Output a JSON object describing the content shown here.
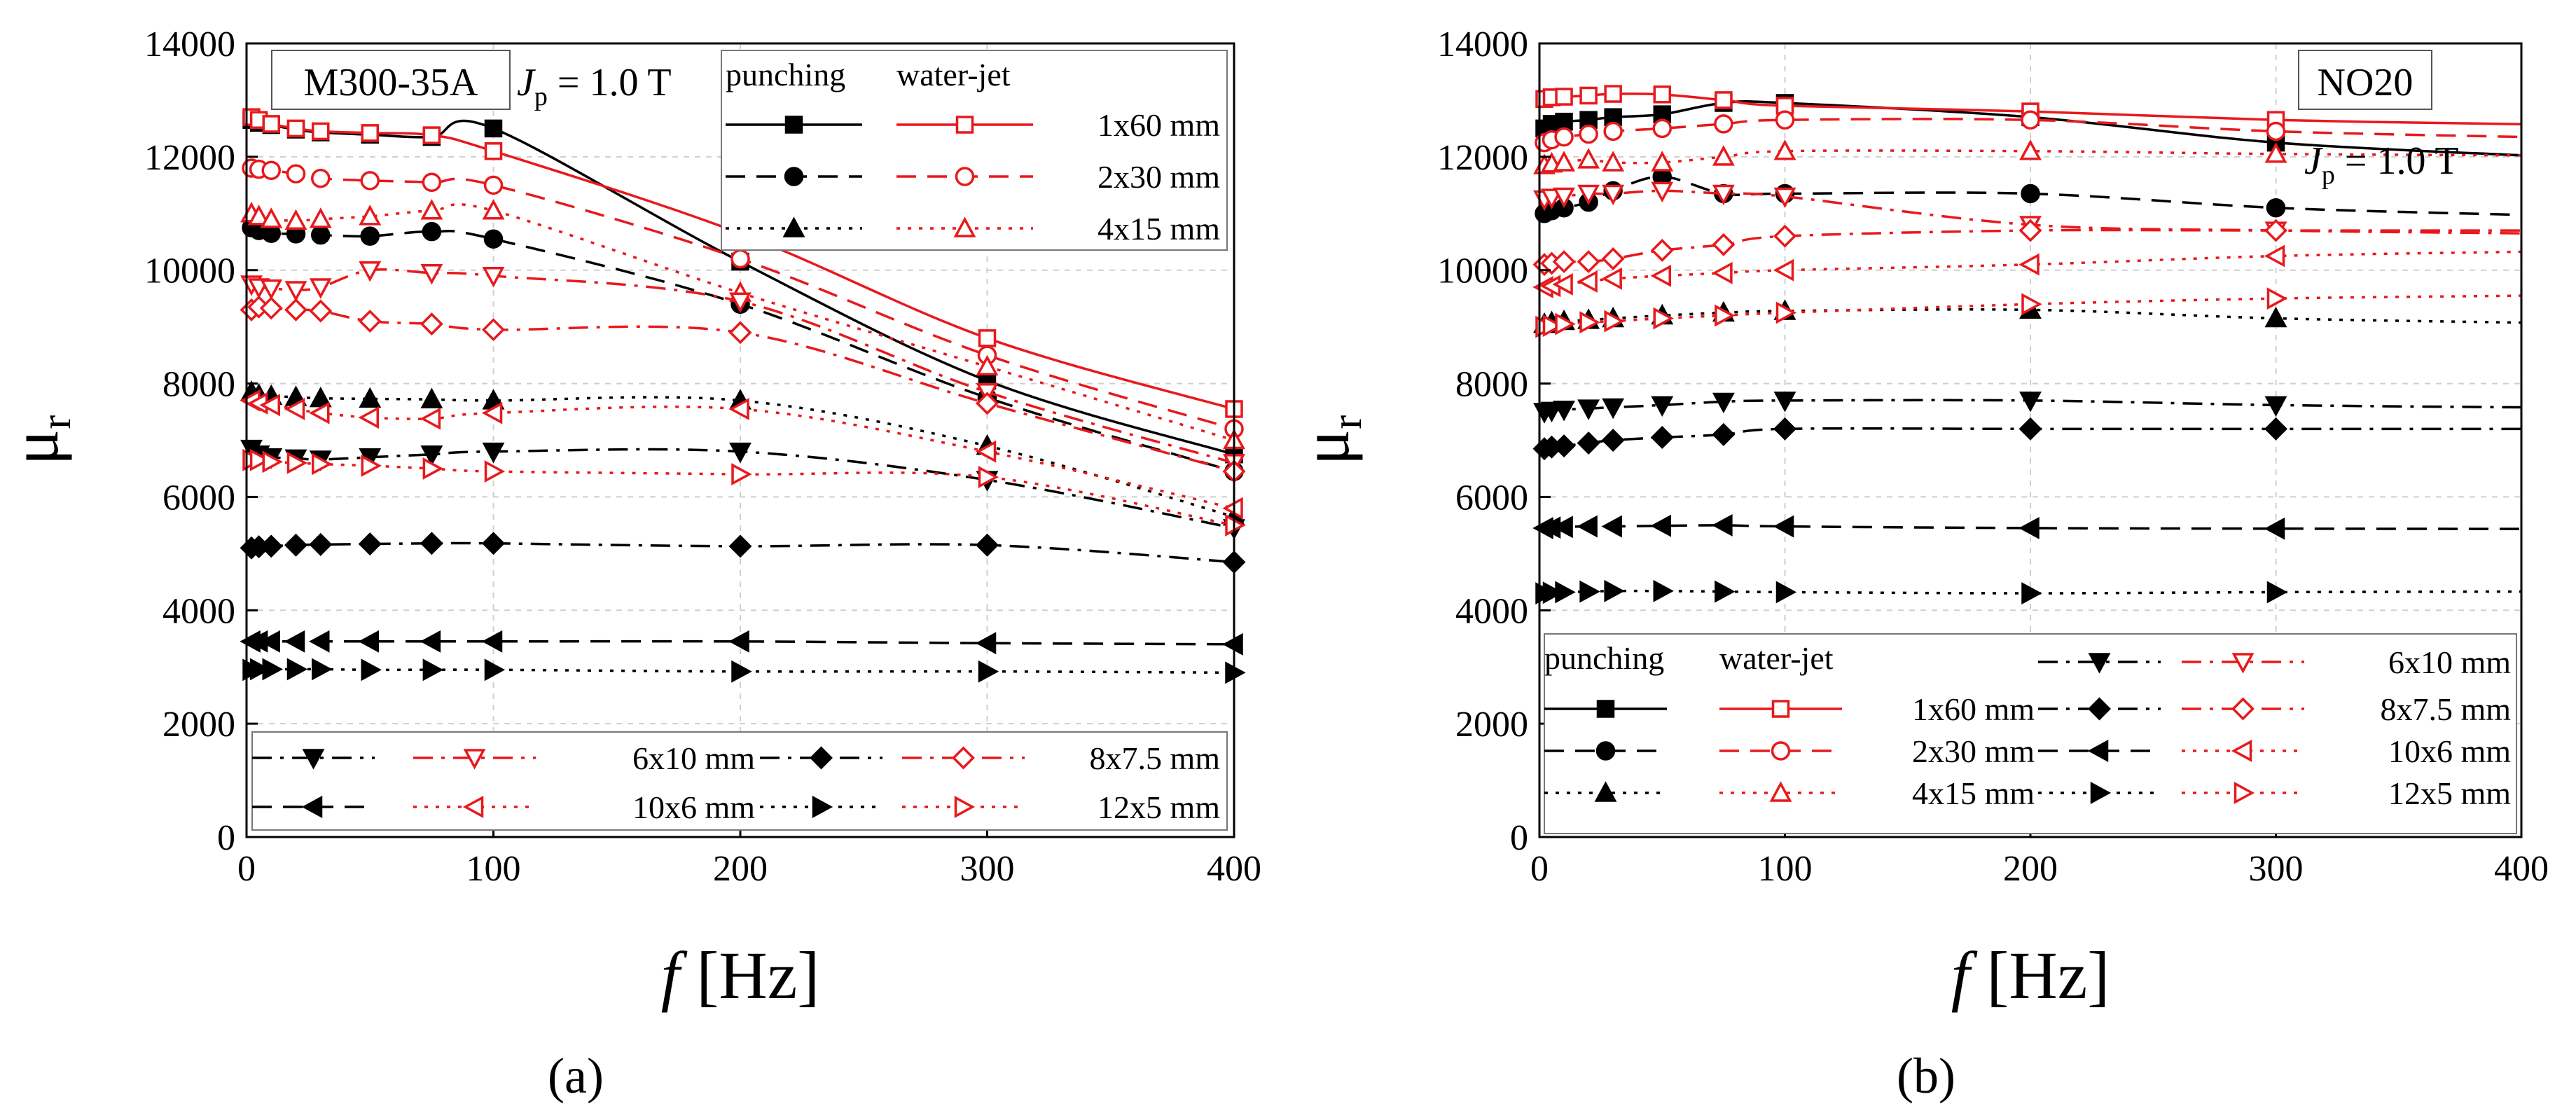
{
  "figure": {
    "label_a": "(a)",
    "label_b": "(b)"
  },
  "axis_text": {
    "f_sym": "f",
    "f_unit": "[Hz]",
    "mu_sym": "μ",
    "mu_sub": "r"
  },
  "annotation": {
    "J": "J",
    "J_sub": "p",
    "J_val": " = 1.0 T"
  },
  "legend_text": {
    "punching": "punching",
    "waterjet": "water-jet"
  },
  "colors": {
    "punching": "#000000",
    "waterjet": "#e8191c",
    "grid": "#cfcfcf"
  },
  "chart_data": [
    {
      "type": "line",
      "panel": "a",
      "material": "M300-35A",
      "xlabel": "f [Hz]",
      "ylabel": "μr",
      "xlim": [
        0,
        400
      ],
      "ylim": [
        0,
        14000
      ],
      "xticks": [
        "0",
        "100",
        "200",
        "300",
        "400"
      ],
      "yticks": [
        "0",
        "2000",
        "4000",
        "6000",
        "8000",
        "10000",
        "12000",
        "14000"
      ],
      "x": [
        2,
        5,
        10,
        20,
        30,
        50,
        75,
        100,
        200,
        300,
        400
      ],
      "series": [
        {
          "name": "punching 1x60 mm",
          "method": "punching",
          "strip": "1x60 mm",
          "marker": "square-filled",
          "dash": "solid",
          "values": [
            12650,
            12600,
            12560,
            12480,
            12430,
            12390,
            12350,
            12500,
            10150,
            8050,
            6750
          ]
        },
        {
          "name": "water-jet 1x60 mm",
          "method": "water-jet",
          "strip": "1x60 mm",
          "marker": "square-open",
          "dash": "solid",
          "values": [
            12700,
            12650,
            12580,
            12500,
            12450,
            12420,
            12380,
            12100,
            10650,
            8800,
            7550
          ]
        },
        {
          "name": "punching 2x30 mm",
          "method": "punching",
          "strip": "2x30 mm",
          "marker": "circle-filled",
          "dash": "dash",
          "values": [
            10750,
            10700,
            10650,
            10640,
            10620,
            10600,
            10680,
            10550,
            9400,
            7750,
            6450
          ]
        },
        {
          "name": "water-jet 2x30 mm",
          "method": "water-jet",
          "strip": "2x30 mm",
          "marker": "circle-open",
          "dash": "dash",
          "values": [
            11800,
            11780,
            11760,
            11700,
            11620,
            11580,
            11550,
            11500,
            10200,
            8500,
            7200
          ]
        },
        {
          "name": "punching 4x15 mm",
          "method": "punching",
          "strip": "4x15 mm",
          "marker": "triangle-up-filled",
          "dash": "dot",
          "values": [
            7850,
            7800,
            7780,
            7760,
            7740,
            7730,
            7720,
            7700,
            7700,
            6900,
            5650
          ]
        },
        {
          "name": "water-jet 4x15 mm",
          "method": "water-jet",
          "strip": "4x15 mm",
          "marker": "triangle-up-open",
          "dash": "dot",
          "values": [
            11000,
            10950,
            10900,
            10870,
            10900,
            10950,
            11050,
            11050,
            9600,
            8300,
            7000
          ]
        },
        {
          "name": "punching 6x10 mm",
          "method": "punching",
          "strip": "6x10 mm",
          "marker": "triangle-down-filled",
          "dash": "dashdot",
          "values": [
            6850,
            6750,
            6700,
            6680,
            6660,
            6700,
            6750,
            6800,
            6800,
            6300,
            5450
          ]
        },
        {
          "name": "water-jet 6x10 mm",
          "method": "water-jet",
          "strip": "6x10 mm",
          "marker": "triangle-down-open",
          "dash": "dashdot",
          "values": [
            9750,
            9700,
            9680,
            9650,
            9700,
            10000,
            9950,
            9900,
            9450,
            7850,
            6600
          ]
        },
        {
          "name": "punching 8x7.5 mm",
          "method": "punching",
          "strip": "8x7.5 mm",
          "marker": "diamond-filled",
          "dash": "dashdot",
          "values": [
            5100,
            5120,
            5130,
            5150,
            5160,
            5170,
            5180,
            5180,
            5130,
            5150,
            4850
          ]
        },
        {
          "name": "water-jet 8x7.5 mm",
          "method": "water-jet",
          "strip": "8x7.5 mm",
          "marker": "diamond-open",
          "dash": "dashdot",
          "values": [
            9300,
            9350,
            9330,
            9300,
            9280,
            9100,
            9050,
            8950,
            8900,
            7650,
            6450
          ]
        },
        {
          "name": "punching 10x6 mm",
          "method": "punching",
          "strip": "10x6 mm",
          "marker": "triangle-left-filled",
          "dash": "dash",
          "values": [
            3450,
            3450,
            3450,
            3450,
            3450,
            3450,
            3450,
            3450,
            3450,
            3420,
            3400
          ]
        },
        {
          "name": "water-jet 10x6 mm",
          "method": "water-jet",
          "strip": "10x6 mm",
          "marker": "triangle-left-open",
          "dash": "dot",
          "values": [
            7700,
            7650,
            7620,
            7550,
            7480,
            7400,
            7380,
            7480,
            7550,
            6800,
            5800
          ]
        },
        {
          "name": "punching 12x5 mm",
          "method": "punching",
          "strip": "12x5 mm",
          "marker": "triangle-right-filled",
          "dash": "dot",
          "values": [
            2950,
            2960,
            2960,
            2960,
            2960,
            2950,
            2950,
            2950,
            2920,
            2920,
            2900
          ]
        },
        {
          "name": "water-jet 12x5 mm",
          "method": "water-jet",
          "strip": "12x5 mm",
          "marker": "triangle-right-open",
          "dash": "dot",
          "values": [
            6650,
            6650,
            6620,
            6600,
            6580,
            6550,
            6500,
            6450,
            6400,
            6350,
            5500
          ]
        }
      ]
    },
    {
      "type": "line",
      "panel": "b",
      "material": "NO20",
      "xlabel": "f [Hz]",
      "ylabel": "μr",
      "xlim": [
        0,
        400
      ],
      "ylim": [
        0,
        14000
      ],
      "xticks": [
        "0",
        "100",
        "200",
        "300",
        "400"
      ],
      "yticks": [
        "0",
        "2000",
        "4000",
        "6000",
        "8000",
        "10000",
        "12000",
        "14000"
      ],
      "x": [
        2,
        5,
        10,
        20,
        30,
        50,
        75,
        100,
        200,
        300
      ],
      "series": [
        {
          "name": "punching 1x60 mm",
          "method": "punching",
          "strip": "1x60 mm",
          "marker": "square-filled",
          "dash": "solid",
          "values": [
            12500,
            12580,
            12620,
            12650,
            12700,
            12750,
            12950,
            12950,
            12700,
            12250
          ]
        },
        {
          "name": "water-jet 1x60 mm",
          "method": "water-jet",
          "strip": "1x60 mm",
          "marker": "square-open",
          "dash": "solid",
          "values": [
            13020,
            13050,
            13060,
            13080,
            13110,
            13100,
            13000,
            12900,
            12800,
            12650
          ]
        },
        {
          "name": "punching 2x30 mm",
          "method": "punching",
          "strip": "2x30 mm",
          "marker": "circle-filled",
          "dash": "dash",
          "values": [
            11000,
            11050,
            11100,
            11200,
            11400,
            11650,
            11350,
            11350,
            11350,
            11100
          ]
        },
        {
          "name": "water-jet 2x30 mm",
          "method": "water-jet",
          "strip": "2x30 mm",
          "marker": "circle-open",
          "dash": "dash",
          "values": [
            12250,
            12300,
            12350,
            12400,
            12450,
            12500,
            12580,
            12650,
            12650,
            12450
          ]
        },
        {
          "name": "punching 4x15 mm",
          "method": "punching",
          "strip": "4x15 mm",
          "marker": "triangle-up-filled",
          "dash": "dot",
          "values": [
            9050,
            9080,
            9100,
            9120,
            9150,
            9200,
            9250,
            9280,
            9300,
            9150
          ]
        },
        {
          "name": "water-jet 4x15 mm",
          "method": "water-jet",
          "strip": "4x15 mm",
          "marker": "triangle-up-open",
          "dash": "dot",
          "values": [
            11850,
            11880,
            11900,
            11950,
            11900,
            11900,
            12000,
            12100,
            12100,
            12050
          ]
        },
        {
          "name": "punching 6x10 mm",
          "method": "punching",
          "strip": "6x10 mm",
          "marker": "triangle-down-filled",
          "dash": "dashdot",
          "values": [
            7500,
            7520,
            7540,
            7560,
            7580,
            7620,
            7680,
            7700,
            7700,
            7620
          ]
        },
        {
          "name": "water-jet 6x10 mm",
          "method": "water-jet",
          "strip": "6x10 mm",
          "marker": "triangle-down-open",
          "dash": "dashdot",
          "values": [
            11250,
            11280,
            11300,
            11350,
            11350,
            11400,
            11350,
            11300,
            10800,
            10700
          ]
        },
        {
          "name": "punching 8x7.5 mm",
          "method": "punching",
          "strip": "8x7.5 mm",
          "marker": "diamond-filled",
          "dash": "dashdot",
          "values": [
            6850,
            6880,
            6900,
            6950,
            7000,
            7050,
            7100,
            7200,
            7200,
            7200
          ]
        },
        {
          "name": "water-jet 8x7.5 mm",
          "method": "water-jet",
          "strip": "8x7.5 mm",
          "marker": "diamond-open",
          "dash": "dashdot",
          "values": [
            10100,
            10120,
            10150,
            10150,
            10200,
            10350,
            10450,
            10600,
            10700,
            10700
          ]
        },
        {
          "name": "punching 10x6 mm",
          "method": "punching",
          "strip": "10x6 mm",
          "marker": "triangle-left-filled",
          "dash": "dash",
          "values": [
            5450,
            5460,
            5470,
            5480,
            5480,
            5490,
            5500,
            5480,
            5450,
            5440
          ]
        },
        {
          "name": "water-jet 10x6 mm",
          "method": "water-jet",
          "strip": "10x6 mm",
          "marker": "triangle-left-open",
          "dash": "dot",
          "values": [
            9700,
            9720,
            9750,
            9800,
            9850,
            9900,
            9950,
            10000,
            10100,
            10250
          ]
        },
        {
          "name": "punching 12x5 mm",
          "method": "punching",
          "strip": "12x5 mm",
          "marker": "triangle-right-filled",
          "dash": "dot",
          "values": [
            4300,
            4310,
            4320,
            4330,
            4340,
            4340,
            4330,
            4320,
            4300,
            4320
          ]
        },
        {
          "name": "water-jet 12x5 mm",
          "method": "water-jet",
          "strip": "12x5 mm",
          "marker": "triangle-right-open",
          "dash": "dot",
          "values": [
            9000,
            9020,
            9050,
            9080,
            9100,
            9150,
            9200,
            9250,
            9400,
            9500
          ]
        }
      ]
    }
  ]
}
